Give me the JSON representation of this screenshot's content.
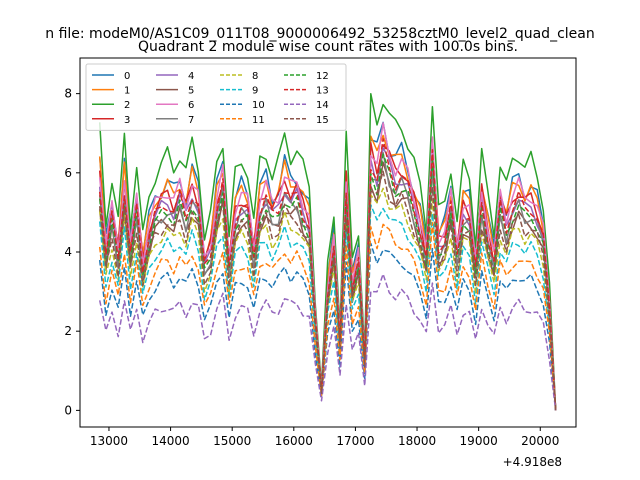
{
  "chart_data": {
    "type": "line",
    "suptitle": "n file: modeM0/AS1C09_011T08_9000006492_53258cztM0_level2_quad_clean",
    "title": "Quadrant 2 module wise count rates with 100.0s bins.",
    "xlabel": "",
    "ylabel": "",
    "x_offset_label": "+4.918e8",
    "xlim": [
      12530,
      20580
    ],
    "ylim": [
      -0.42,
      8.9
    ],
    "xticks": [
      13000,
      14000,
      15000,
      16000,
      17000,
      18000,
      19000,
      20000
    ],
    "xtick_labels": [
      "13000",
      "14000",
      "15000",
      "16000",
      "17000",
      "18000",
      "19000",
      "20000"
    ],
    "yticks": [
      0,
      2,
      4,
      6,
      8
    ],
    "ytick_labels": [
      "0",
      "2",
      "4",
      "6",
      "8"
    ],
    "grid": false,
    "legend_position": "upper-left, 4 columns",
    "x": [
      12850,
      12950,
      13050,
      13150,
      13250,
      13350,
      13450,
      13550,
      13650,
      13750,
      13850,
      13950,
      14050,
      14150,
      14250,
      14350,
      14450,
      14550,
      14650,
      14750,
      14850,
      14950,
      15050,
      15150,
      15250,
      15350,
      15450,
      15550,
      15650,
      15750,
      15850,
      15950,
      16050,
      16150,
      16250,
      16350,
      16450,
      16550,
      16650,
      16750,
      16850,
      16950,
      17050,
      17150,
      17250,
      17350,
      17450,
      17550,
      17650,
      17750,
      17850,
      17950,
      18050,
      18150,
      18250,
      18350,
      18450,
      18550,
      18650,
      18750,
      18850,
      18950,
      19050,
      19150,
      19250,
      19350,
      19450,
      19550,
      19650,
      19750,
      19850,
      19950,
      20050,
      20150,
      20250
    ],
    "base_profile": [
      1.15,
      0.78,
      0.97,
      0.78,
      1.12,
      0.78,
      1.02,
      0.72,
      0.88,
      0.98,
      1.02,
      1.05,
      1.0,
      1.07,
      0.98,
      1.1,
      1.02,
      0.72,
      0.8,
      1.02,
      1.13,
      0.72,
      0.97,
      1.03,
      1.0,
      0.78,
      1.02,
      1.07,
      0.98,
      1.02,
      1.13,
      1.06,
      1.08,
      1.0,
      0.93,
      0.45,
      0.1,
      0.6,
      0.82,
      0.35,
      1.12,
      0.62,
      0.75,
      0.25,
      1.26,
      1.18,
      1.32,
      1.22,
      1.16,
      1.18,
      1.12,
      1.02,
      0.92,
      0.76,
      1.28,
      0.82,
      0.86,
      1.02,
      0.78,
      1.0,
      0.97,
      0.7,
      1.06,
      0.88,
      0.74,
      1.03,
      0.92,
      1.03,
      1.07,
      1.01,
      1.03,
      0.97,
      0.86,
      0.52,
      0.0
    ],
    "series": [
      {
        "name": "0",
        "color": "#1f77b4",
        "dash": "solid",
        "scale": 5.5,
        "phase": 0.3,
        "jitter": 0.25
      },
      {
        "name": "1",
        "color": "#ff7f0e",
        "dash": "solid",
        "scale": 5.4,
        "phase": 1.1,
        "jitter": 0.2
      },
      {
        "name": "2",
        "color": "#2ca02c",
        "dash": "solid",
        "scale": 6.1,
        "phase": 2.0,
        "jitter": 0.25
      },
      {
        "name": "3",
        "color": "#d62728",
        "dash": "solid",
        "scale": 5.2,
        "phase": 2.8,
        "jitter": 0.2
      },
      {
        "name": "4",
        "color": "#9467bd",
        "dash": "solid",
        "scale": 5.0,
        "phase": 3.6,
        "jitter": 0.2
      },
      {
        "name": "5",
        "color": "#8c564b",
        "dash": "solid",
        "scale": 4.6,
        "phase": 4.3,
        "jitter": 0.2
      },
      {
        "name": "6",
        "color": "#e377c2",
        "dash": "solid",
        "scale": 5.3,
        "phase": 5.1,
        "jitter": 0.2
      },
      {
        "name": "7",
        "color": "#7f7f7f",
        "dash": "solid",
        "scale": 4.8,
        "phase": 5.9,
        "jitter": 0.2
      },
      {
        "name": "8",
        "color": "#bcbd22",
        "dash": "dashed",
        "scale": 4.3,
        "phase": 0.7,
        "jitter": 0.15
      },
      {
        "name": "9",
        "color": "#17becf",
        "dash": "dashed",
        "scale": 4.0,
        "phase": 1.5,
        "jitter": 0.15
      },
      {
        "name": "10",
        "color": "#1f77b4",
        "dash": "dashed",
        "scale": 3.2,
        "phase": 2.4,
        "jitter": 0.15
      },
      {
        "name": "11",
        "color": "#ff7f0e",
        "dash": "dashed",
        "scale": 3.6,
        "phase": 3.2,
        "jitter": 0.15
      },
      {
        "name": "12",
        "color": "#2ca02c",
        "dash": "dashed",
        "scale": 4.8,
        "phase": 4.0,
        "jitter": 0.2
      },
      {
        "name": "13",
        "color": "#d62728",
        "dash": "dashed",
        "scale": 5.0,
        "phase": 4.8,
        "jitter": 0.2
      },
      {
        "name": "14",
        "color": "#9467bd",
        "dash": "dashed",
        "scale": 2.5,
        "phase": 5.5,
        "jitter": 0.12
      },
      {
        "name": "15",
        "color": "#8c564b",
        "dash": "dashed",
        "scale": 4.5,
        "phase": 6.2,
        "jitter": 0.18
      }
    ]
  }
}
